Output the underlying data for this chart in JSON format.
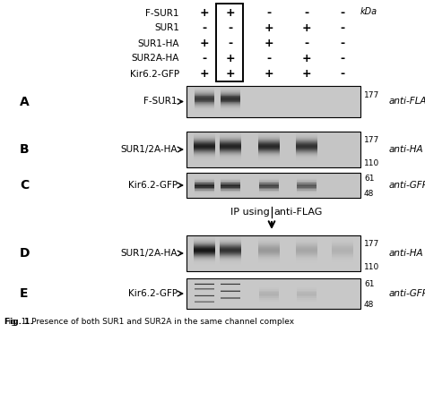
{
  "fig_caption": "Fig. 1. Presence of both SUR1 and SUR2A in the same channel complex",
  "background_color": "#ffffff",
  "rows": [
    "F-SUR1",
    "SUR1",
    "SUR1-HA",
    "SUR2A-HA",
    "Kir6.2-GFP"
  ],
  "cols_signs": [
    [
      "+",
      "-",
      "+",
      "-",
      "+"
    ],
    [
      "+",
      "-",
      "-",
      "+",
      "+"
    ],
    [
      "-",
      "+",
      "+",
      "-",
      "+"
    ],
    [
      "-",
      "+",
      "-",
      "+",
      "+"
    ],
    [
      "-",
      "-",
      "-",
      "-",
      "-"
    ]
  ],
  "highlighted_col": 1,
  "band_A_label": "F-SUR1",
  "band_B_label": "SUR1/2A-HA",
  "band_C_label": "Kir6.2-GFP",
  "band_D_label": "SUR1/2A-HA",
  "band_E_label": "Kir6.2-GFP",
  "anti_A": "anti-FLAG",
  "anti_B": "anti-HA",
  "anti_C": "anti-GFP",
  "anti_D": "anti-HA",
  "anti_E": "anti-GFP",
  "ip_label": "IP using",
  "ip_antibody": "anti-FLAG",
  "kda_label": "kDa",
  "panel_bg_light": "#d0d0d0",
  "panel_bg_mid": "#c0c0c0",
  "panel_bg_dark": "#a8a8a8"
}
